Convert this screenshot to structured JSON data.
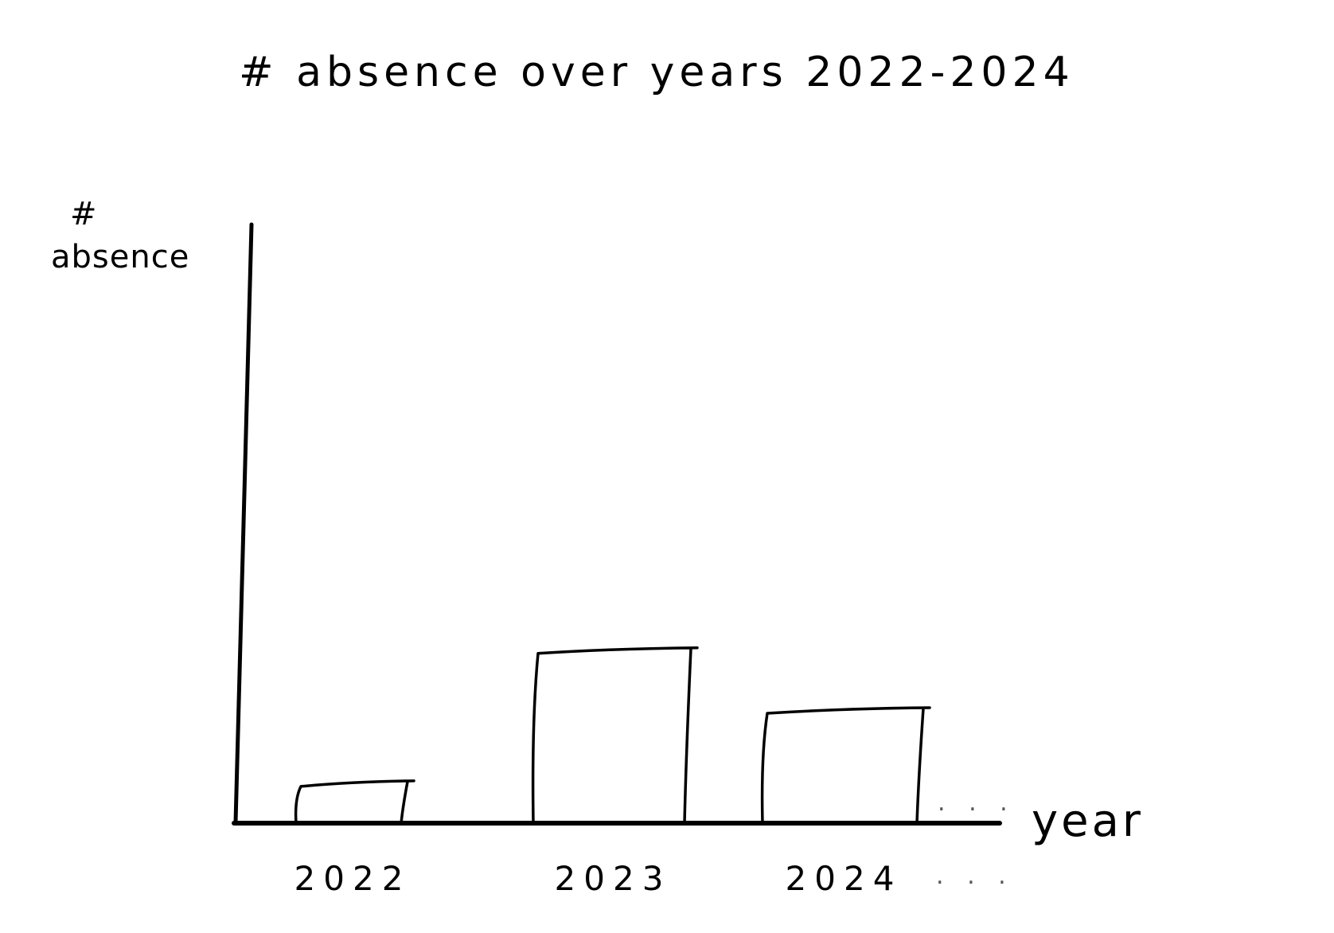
{
  "chart_data": {
    "type": "bar",
    "title": "# absence over years 2022-2024",
    "xlabel": "year",
    "ylabel_symbol": "#",
    "ylabel": "absence",
    "categories": [
      "2022",
      "2023",
      "2024"
    ],
    "values": [
      6,
      26,
      17
    ],
    "ylim": [
      0,
      90
    ],
    "continuation_marker": ". . .",
    "grid": false,
    "style": "hand-drawn sketch, outline-only bars",
    "colors": {
      "ink": "#000000",
      "background": "#ffffff"
    }
  }
}
